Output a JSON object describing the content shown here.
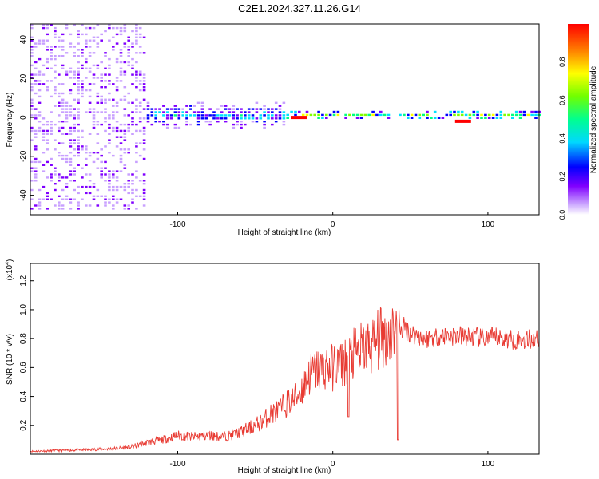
{
  "title": "C2E1.2024.327.11.26.G14",
  "chart_data": [
    {
      "type": "heatmap",
      "xlabel": "Height of straight line (km)",
      "ylabel": "Frequency (Hz)",
      "xlim": [
        -195,
        133
      ],
      "ylim": [
        -50,
        48
      ],
      "x_ticks": [
        -100,
        0,
        100
      ],
      "y_ticks": [
        -40,
        -20,
        0,
        20,
        40
      ],
      "colorbar": {
        "label": "Normalized spectral amplitude",
        "range": [
          0,
          1
        ],
        "ticks": [
          "0.0",
          "0.2",
          "0.4",
          "0.6",
          "0.8"
        ],
        "colors": [
          "#ffffff",
          "#c8a0ff",
          "#8000ff",
          "#0000ff",
          "#00e0ff",
          "#00ff80",
          "#80ff00",
          "#ffff00",
          "#ff8000",
          "#ff0000"
        ]
      },
      "regions": [
        {
          "x": [
            -195,
            -120
          ],
          "freq_spread_hz": 48,
          "amplitude": 0.15
        },
        {
          "x": [
            -120,
            -30
          ],
          "freq_spread_hz": 8,
          "amplitude": 0.4
        },
        {
          "x": [
            -30,
            133
          ],
          "freq_spread_hz": 3,
          "amplitude": 0.6
        }
      ],
      "peaks": [
        {
          "x": -22,
          "freq_hz": 0,
          "amplitude": 0.95
        },
        {
          "x": 84,
          "freq_hz": -2,
          "amplitude": 0.95
        }
      ]
    },
    {
      "type": "line",
      "xlabel": "Height of straight line (km)",
      "ylabel": "SNR (10 * v/v)",
      "y_multiplier": "(x10",
      "y_multiplier_exp": "4",
      "xlim": [
        -195,
        133
      ],
      "ylim": [
        0,
        1.32
      ],
      "x_ticks": [
        -100,
        0,
        100
      ],
      "y_ticks": [
        "0.2",
        "0.4",
        "0.6",
        "0.8",
        "1.0",
        "1.2"
      ],
      "color": "#e83a32",
      "series": [
        {
          "x": [
            -195,
            -180,
            -160,
            -140,
            -130,
            -120,
            -110,
            -100,
            -90,
            -80,
            -70,
            -60,
            -50,
            -45,
            -40,
            -35,
            -30,
            -25,
            -20,
            -15,
            -10,
            -5,
            0,
            5,
            10,
            15,
            20,
            25,
            30,
            35,
            40,
            42,
            44,
            46,
            50,
            55,
            60,
            70,
            80,
            90,
            100,
            105,
            110,
            120,
            133
          ],
          "y": [
            0.02,
            0.025,
            0.03,
            0.04,
            0.05,
            0.08,
            0.1,
            0.13,
            0.12,
            0.13,
            0.12,
            0.15,
            0.2,
            0.23,
            0.28,
            0.3,
            0.35,
            0.38,
            0.45,
            0.55,
            0.58,
            0.6,
            0.6,
            0.62,
            0.65,
            0.7,
            0.73,
            0.75,
            0.8,
            0.82,
            0.88,
            1.0,
            0.85,
            0.88,
            0.84,
            0.82,
            0.8,
            0.82,
            0.82,
            0.81,
            0.8,
            0.81,
            0.8,
            0.79,
            0.8
          ]
        }
      ],
      "dips": [
        {
          "x": 10,
          "y": 0.26
        },
        {
          "x": 42,
          "y": 0.1
        }
      ]
    }
  ]
}
